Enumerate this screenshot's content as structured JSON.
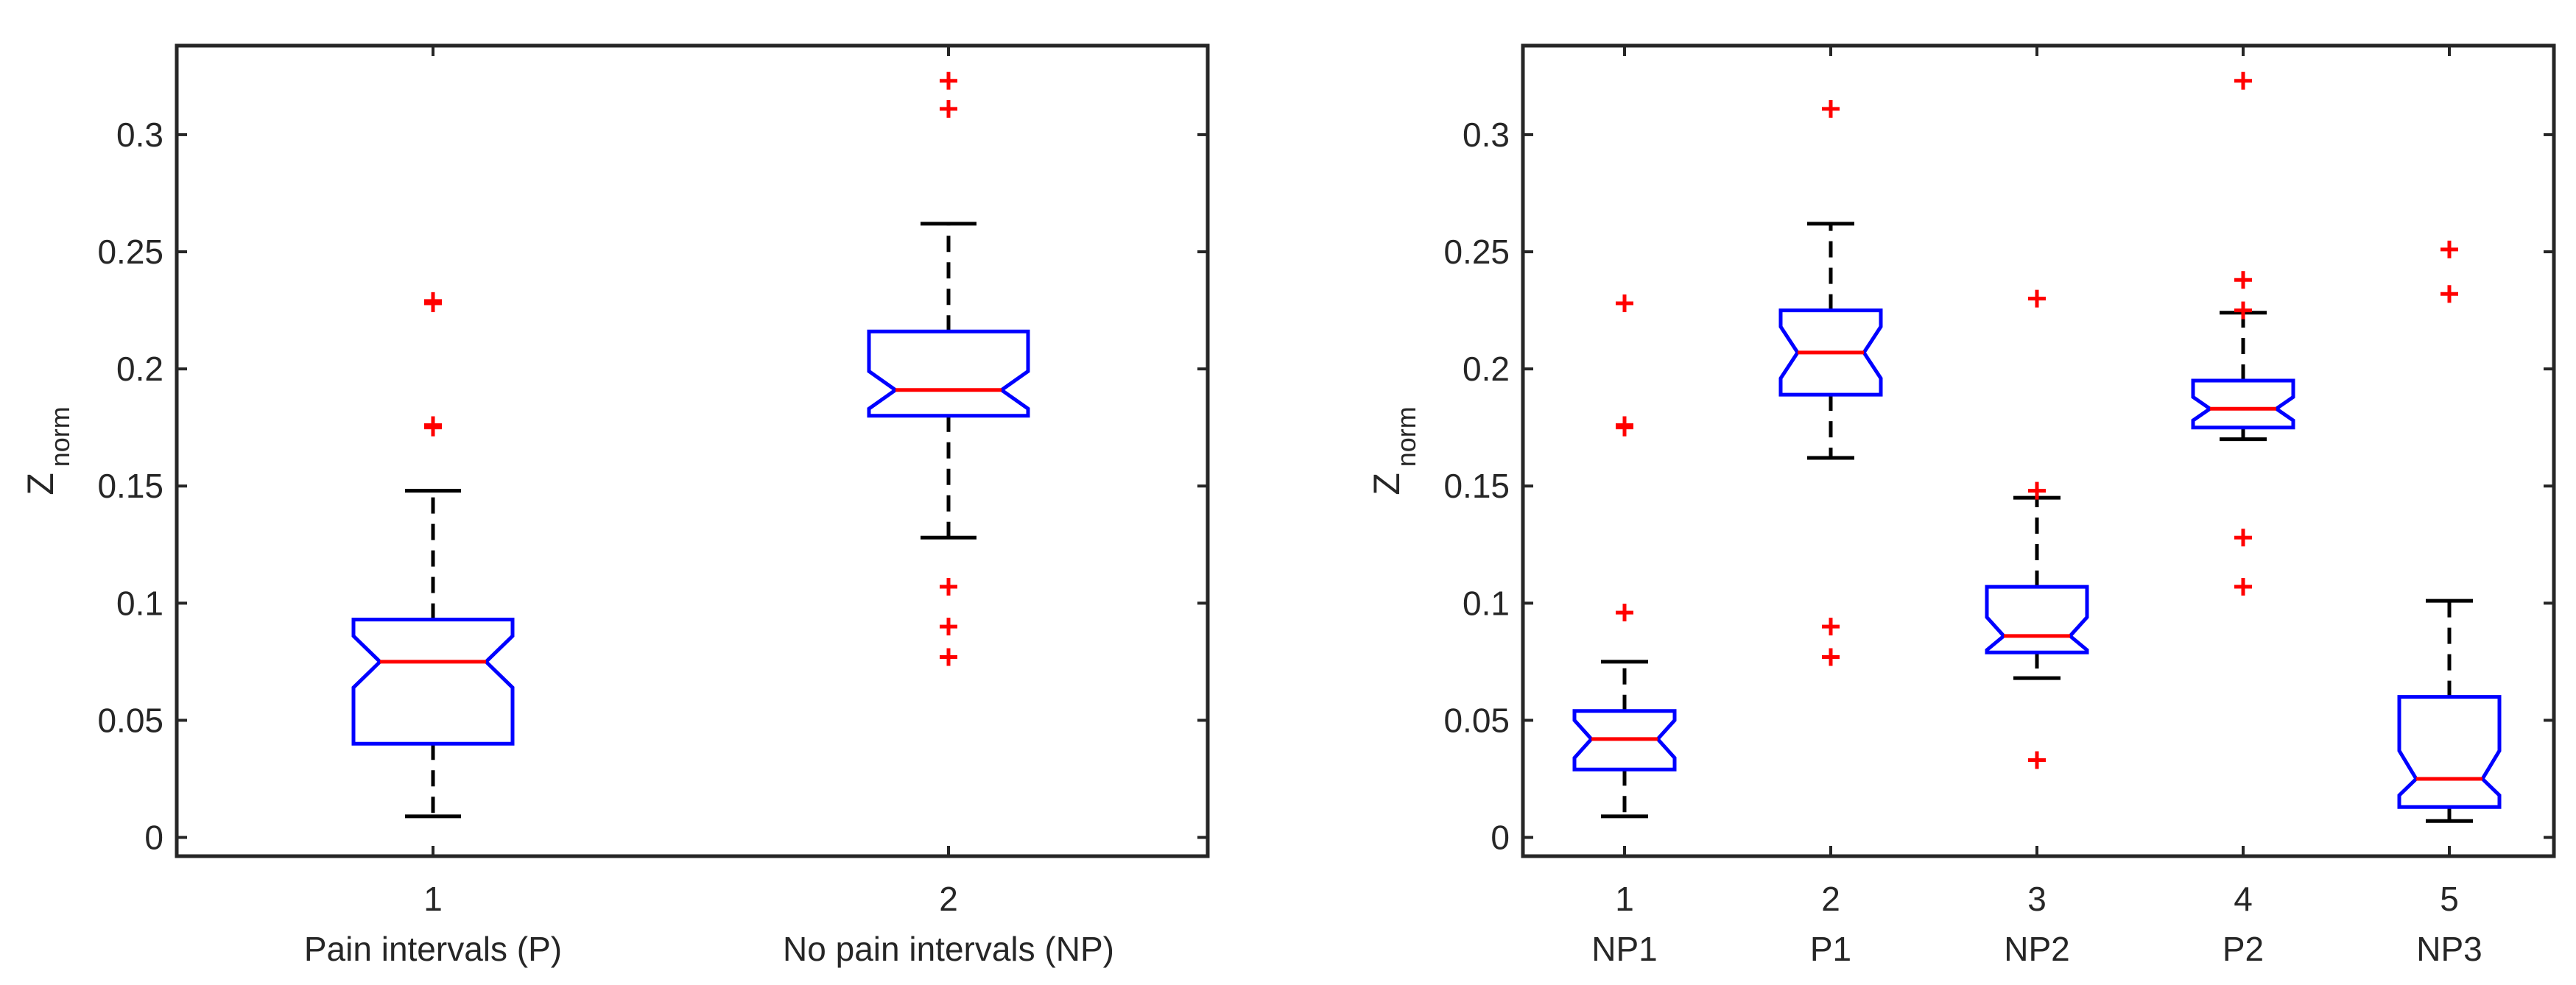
{
  "chart_data": [
    {
      "type": "box",
      "notched": true,
      "ylabel": "Z",
      "ylabel_subscript": "norm",
      "ylim": [
        -0.008,
        0.338
      ],
      "yticks": [
        0,
        0.05,
        0.1,
        0.15,
        0.2,
        0.25,
        0.3
      ],
      "ytick_labels": [
        "0",
        "0.05",
        "0.1",
        "0.15",
        "0.2",
        "0.25",
        "0.3"
      ],
      "categories": [
        "1",
        "2"
      ],
      "category_labels": [
        "Pain intervals (P)",
        "No pain intervals (NP)"
      ],
      "boxes": [
        {
          "whisker_low": 0.009,
          "q1": 0.04,
          "median": 0.075,
          "q3": 0.093,
          "whisker_high": 0.148,
          "notch_low": 0.064,
          "notch_high": 0.086,
          "outliers": [
            0.175,
            0.176,
            0.228,
            0.229
          ]
        },
        {
          "whisker_low": 0.128,
          "q1": 0.18,
          "median": 0.191,
          "q3": 0.216,
          "whisker_high": 0.262,
          "notch_low": 0.183,
          "notch_high": 0.199,
          "outliers": [
            0.077,
            0.09,
            0.107,
            0.311,
            0.323
          ]
        }
      ]
    },
    {
      "type": "box",
      "notched": true,
      "ylabel": "Z",
      "ylabel_subscript": "norm",
      "ylim": [
        -0.008,
        0.338
      ],
      "yticks": [
        0,
        0.05,
        0.1,
        0.15,
        0.2,
        0.25,
        0.3
      ],
      "ytick_labels": [
        "0",
        "0.05",
        "0.1",
        "0.15",
        "0.2",
        "0.25",
        "0.3"
      ],
      "categories": [
        "1",
        "2",
        "3",
        "4",
        "5"
      ],
      "category_labels": [
        "NP1",
        "P1",
        "NP2",
        "P2",
        "NP3"
      ],
      "boxes": [
        {
          "whisker_low": 0.009,
          "q1": 0.029,
          "median": 0.042,
          "q3": 0.054,
          "whisker_high": 0.075,
          "notch_low": 0.034,
          "notch_high": 0.05,
          "outliers": [
            0.096,
            0.175,
            0.176,
            0.228
          ]
        },
        {
          "whisker_low": 0.162,
          "q1": 0.189,
          "median": 0.207,
          "q3": 0.225,
          "whisker_high": 0.262,
          "notch_low": 0.196,
          "notch_high": 0.218,
          "outliers": [
            0.077,
            0.09,
            0.311
          ]
        },
        {
          "whisker_low": 0.068,
          "q1": 0.079,
          "median": 0.086,
          "q3": 0.107,
          "whisker_high": 0.145,
          "notch_low": 0.08,
          "notch_high": 0.094,
          "outliers": [
            0.033,
            0.148,
            0.23
          ]
        },
        {
          "whisker_low": 0.17,
          "q1": 0.175,
          "median": 0.183,
          "q3": 0.195,
          "whisker_high": 0.224,
          "notch_low": 0.178,
          "notch_high": 0.188,
          "outliers": [
            0.107,
            0.128,
            0.225,
            0.238,
            0.323
          ]
        },
        {
          "whisker_low": 0.007,
          "q1": 0.013,
          "median": 0.025,
          "q3": 0.06,
          "whisker_high": 0.101,
          "notch_low": 0.018,
          "notch_high": 0.037,
          "outliers": [
            0.232,
            0.251
          ]
        }
      ]
    }
  ],
  "colors": {
    "box": "#0000ff",
    "median": "#ff0000",
    "whisker": "#000000",
    "outlier": "#ff0000",
    "axes": "#262626",
    "text": "#262626",
    "background": "#ffffff"
  }
}
